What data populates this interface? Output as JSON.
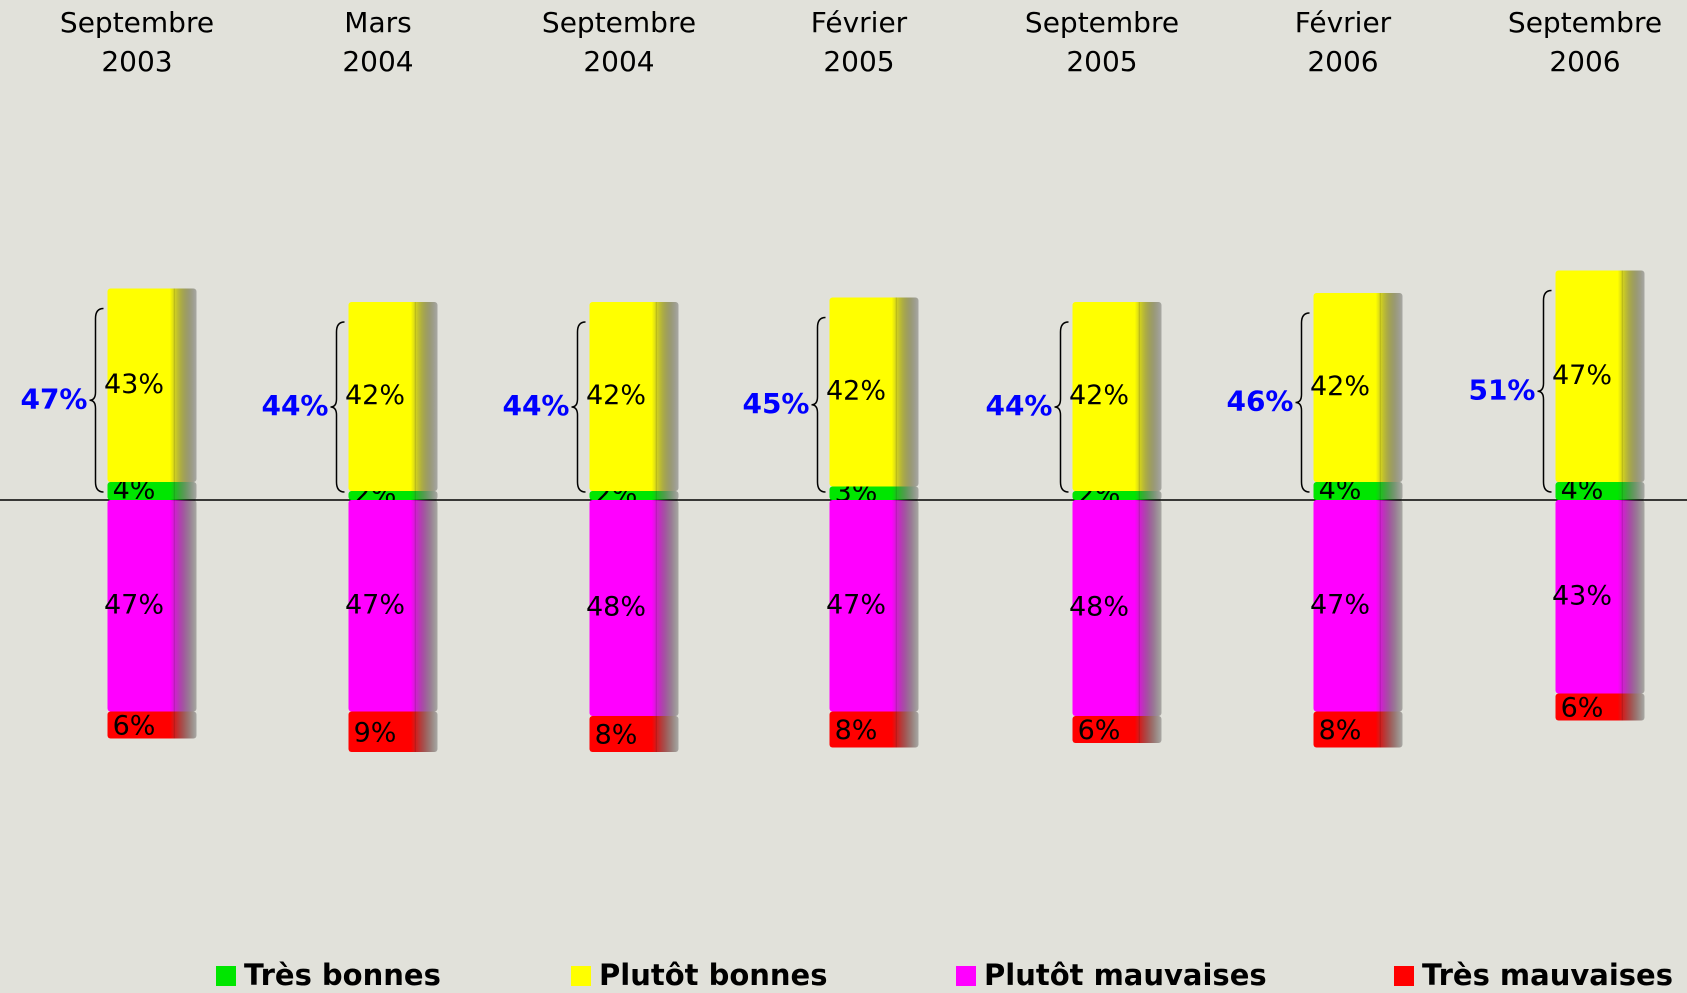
{
  "chart_data": {
    "type": "diverging_stacked_bar",
    "categories": [
      [
        "Septembre",
        "2003"
      ],
      [
        "Mars",
        "2004"
      ],
      [
        "Septembre",
        "2004"
      ],
      [
        "Février",
        "2005"
      ],
      [
        "Septembre",
        "2005"
      ],
      [
        "Février",
        "2006"
      ],
      [
        "Septembre",
        "2006"
      ]
    ],
    "series": [
      {
        "name": "Très bonnes",
        "color": "#00e600",
        "side": "positive",
        "values": [
          4,
          2,
          2,
          3,
          2,
          4,
          4
        ],
        "value_labels": [
          "4%",
          "2%",
          "2%",
          "3%",
          "2%",
          "4%",
          "4%"
        ]
      },
      {
        "name": "Plutôt bonnes",
        "color": "#ffff00",
        "side": "positive",
        "values": [
          43,
          42,
          42,
          42,
          42,
          42,
          47
        ],
        "value_labels": [
          "43%",
          "42%",
          "42%",
          "42%",
          "42%",
          "42%",
          "47%"
        ]
      },
      {
        "name": "Plutôt mauvaises",
        "color": "#ff00ff",
        "side": "negative",
        "values": [
          47,
          47,
          48,
          47,
          48,
          47,
          43
        ],
        "value_labels": [
          "47%",
          "47%",
          "48%",
          "47%",
          "48%",
          "47%",
          "43%"
        ]
      },
      {
        "name": "Très mauvaises",
        "color": "#ff0000",
        "side": "negative",
        "values": [
          6,
          9,
          8,
          8,
          6,
          8,
          6
        ],
        "value_labels": [
          "6%",
          "9%",
          "8%",
          "8%",
          "6%",
          "8%",
          "6%"
        ]
      }
    ],
    "positive_totals": {
      "color": "#0000ff",
      "values": [
        47,
        44,
        44,
        45,
        44,
        46,
        51
      ],
      "value_labels": [
        "47%",
        "44%",
        "44%",
        "45%",
        "44%",
        "46%",
        "51%"
      ]
    }
  }
}
